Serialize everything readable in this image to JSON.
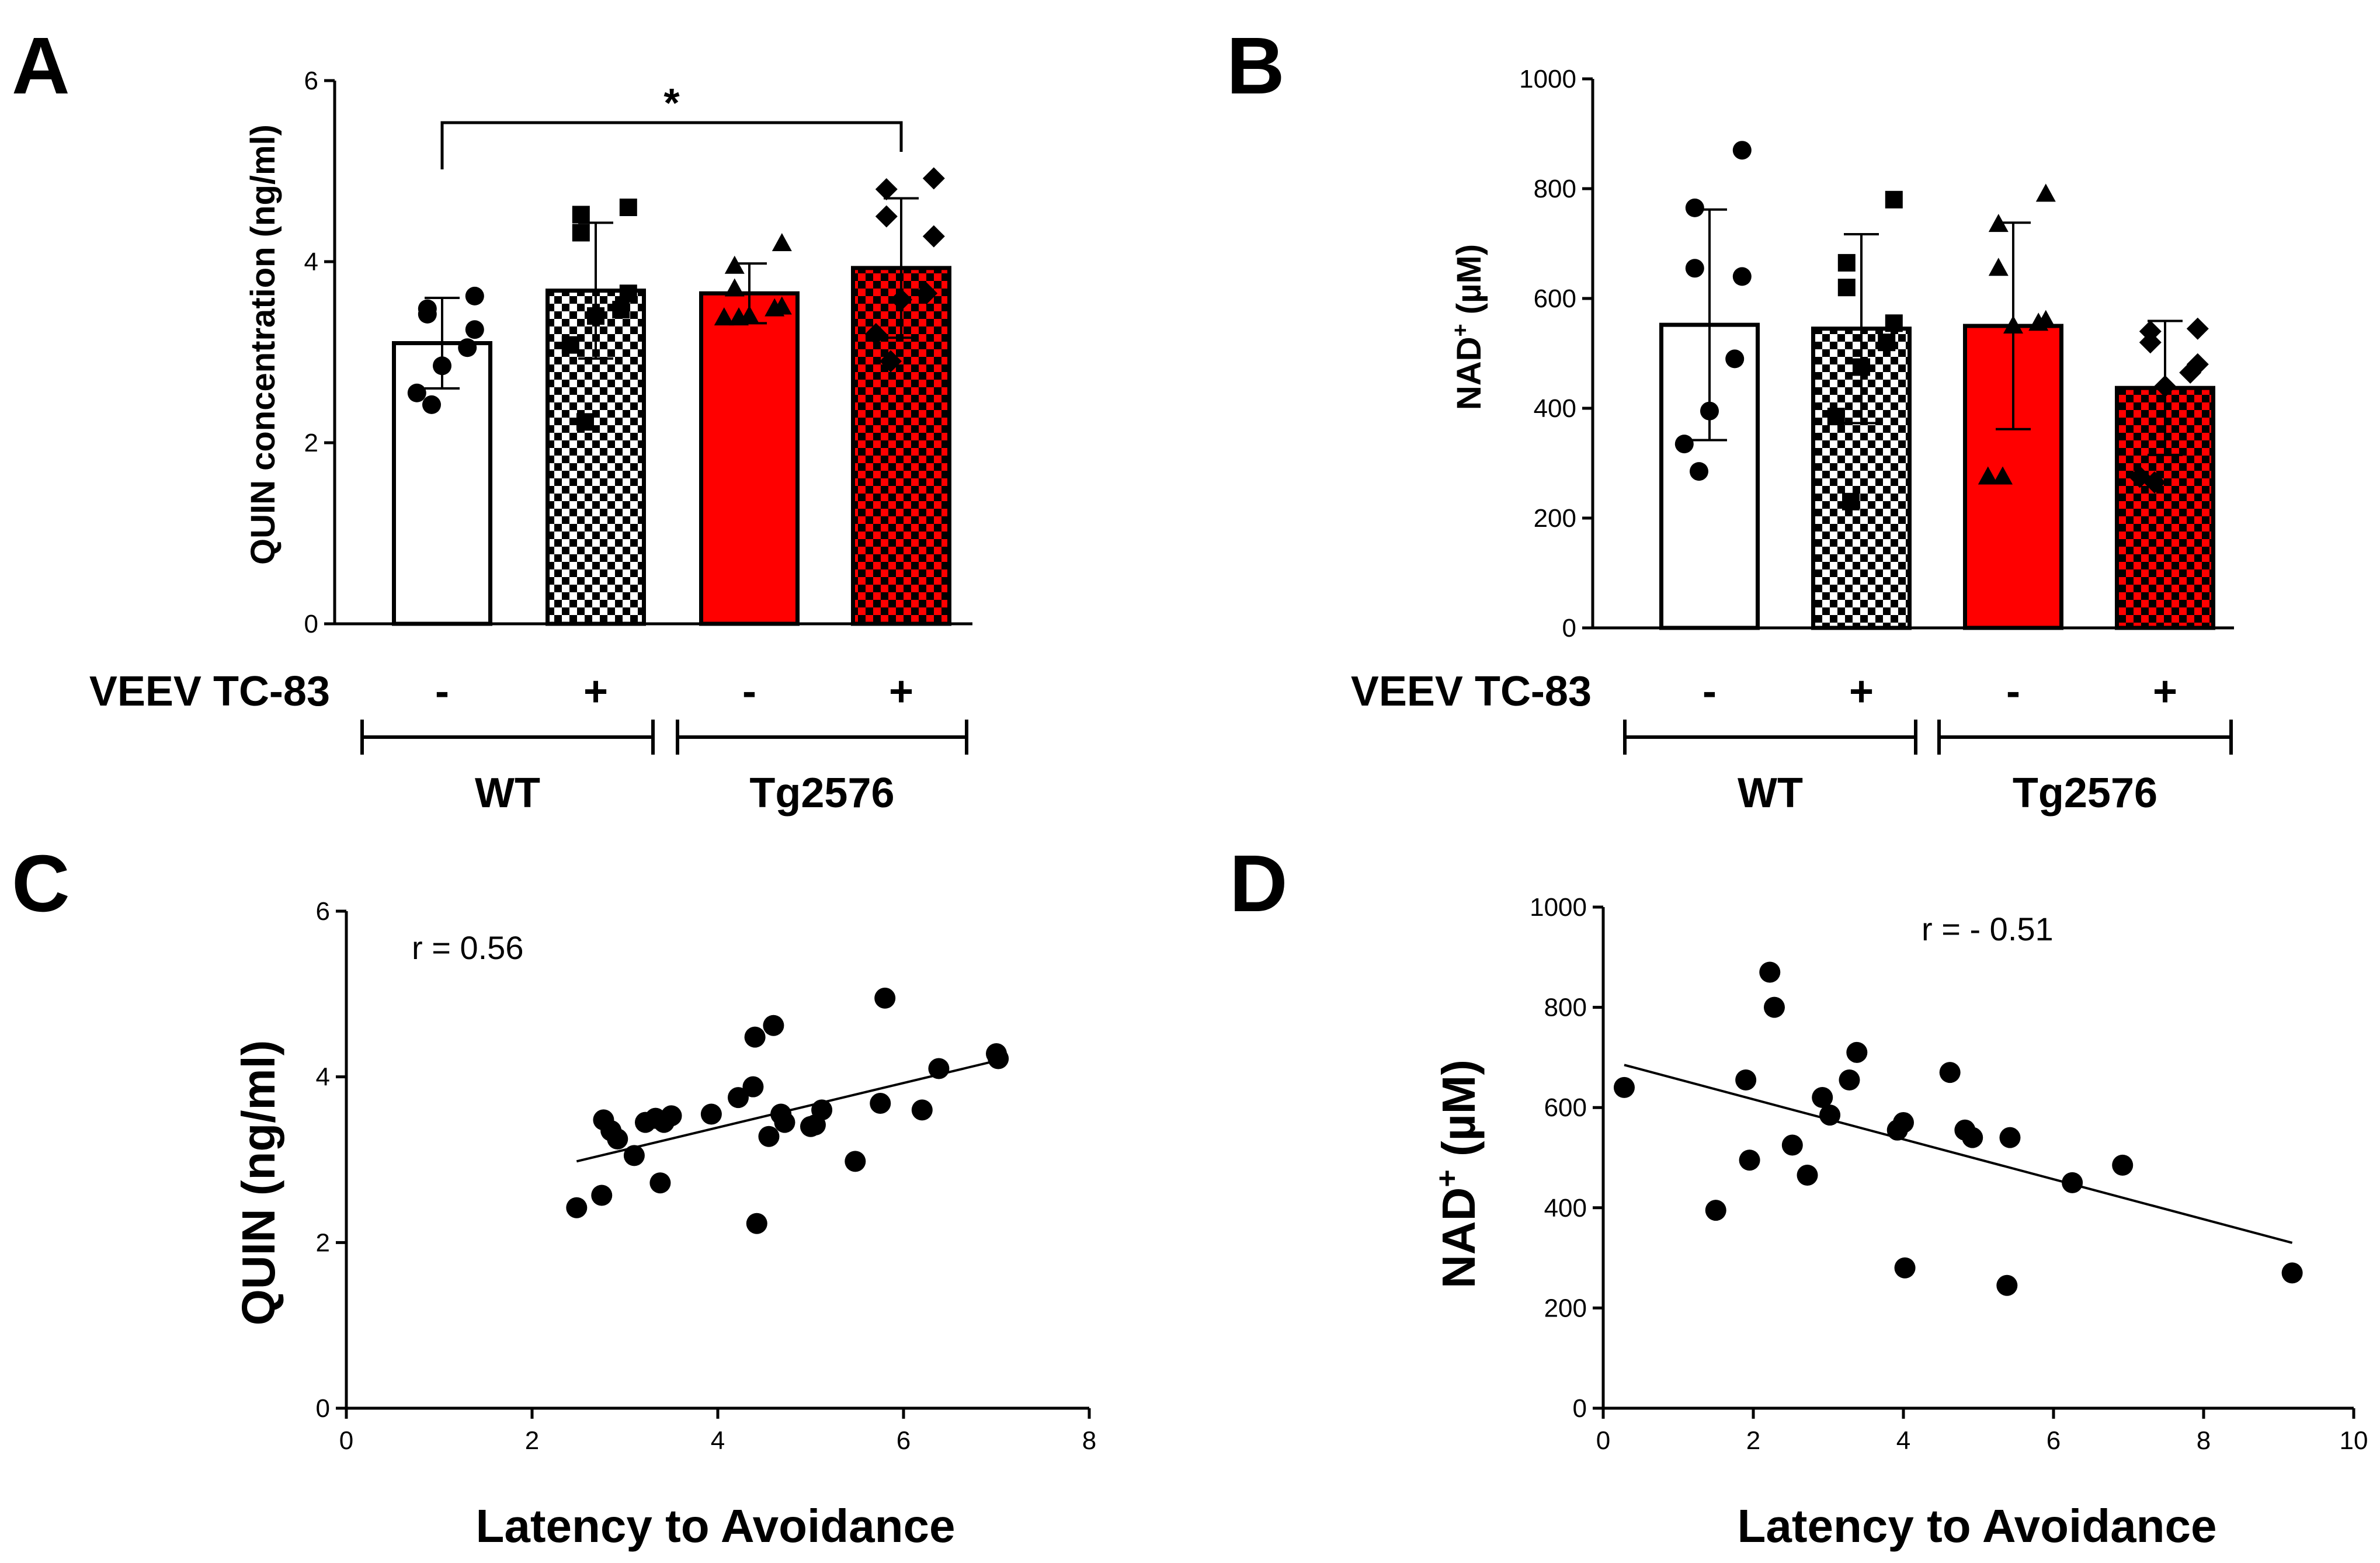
{
  "colors": {
    "wt": "#ffffff",
    "tg": "#ff0000",
    "stroke": "#000000",
    "checker_dark": "#000000",
    "checker_tg_light": "#ff0000"
  },
  "chart_data": [
    {
      "panel": "A",
      "type": "bar",
      "ylabel": "QUIN concentration (ng/ml)",
      "ylim": [
        0,
        6
      ],
      "yticks": [
        0,
        2,
        4,
        6
      ],
      "treatment_label": "VEEV TC-83",
      "groups": [
        {
          "label": "WT",
          "treatments": [
            "-",
            "+"
          ]
        },
        {
          "label": "Tg2576",
          "treatments": [
            "-",
            "+"
          ]
        }
      ],
      "categories": [
        "WT -",
        "WT +",
        "Tg2576 -",
        "Tg2576 +"
      ],
      "values": [
        3.1,
        3.68,
        3.65,
        3.93
      ],
      "sd": [
        0.5,
        0.75,
        0.33,
        0.77
      ],
      "points": [
        [
          3.62,
          3.48,
          3.42,
          3.25,
          3.05,
          2.85,
          2.55,
          2.42
        ],
        [
          4.6,
          4.52,
          4.32,
          3.65,
          3.47,
          3.4,
          3.08,
          2.23
        ],
        [
          4.2,
          3.95,
          3.7,
          3.5,
          3.48,
          3.4,
          3.38,
          3.38
        ],
        [
          4.92,
          4.8,
          4.5,
          4.28,
          3.65,
          3.58,
          3.2,
          2.9
        ]
      ],
      "markers": [
        "circle",
        "square",
        "triangle",
        "diamond"
      ],
      "fills": [
        "white",
        "checker-black",
        "red",
        "checker-red"
      ],
      "significance": {
        "from": 0,
        "to": 3,
        "label": "*"
      }
    },
    {
      "panel": "B",
      "type": "bar",
      "ylabel": "NAD+ (µM)",
      "ylim": [
        0,
        1000
      ],
      "yticks": [
        0,
        200,
        400,
        600,
        800,
        1000
      ],
      "treatment_label": "VEEV TC-83",
      "groups": [
        {
          "label": "WT",
          "treatments": [
            "-",
            "+"
          ]
        },
        {
          "label": "Tg2576",
          "treatments": [
            "-",
            "+"
          ]
        }
      ],
      "categories": [
        "WT -",
        "WT +",
        "Tg2576 -",
        "Tg2576 +"
      ],
      "values": [
        552,
        545,
        550,
        437
      ],
      "sd": [
        210,
        172,
        188,
        122
      ],
      "points": [
        [
          870,
          765,
          655,
          640,
          490,
          395,
          335,
          285
        ],
        [
          780,
          665,
          620,
          555,
          520,
          475,
          385,
          230
        ],
        [
          790,
          735,
          655,
          560,
          555,
          550,
          275,
          275
        ],
        [
          545,
          540,
          520,
          480,
          465,
          440,
          275,
          265
        ]
      ],
      "markers": [
        "circle",
        "square",
        "triangle",
        "diamond"
      ],
      "fills": [
        "white",
        "checker-black",
        "red",
        "checker-red"
      ]
    },
    {
      "panel": "C",
      "type": "scatter",
      "xlabel": "Latency to Avoidance",
      "ylabel": "QUIN (ng/ml)",
      "xlim": [
        0,
        8
      ],
      "ylim": [
        0,
        6
      ],
      "xticks": [
        0,
        2,
        4,
        6,
        8
      ],
      "yticks": [
        0,
        2,
        4,
        6
      ],
      "annotation": "r = 0.56",
      "x": [
        2.48,
        2.75,
        2.77,
        2.85,
        2.92,
        3.1,
        3.22,
        3.33,
        3.38,
        3.42,
        3.5,
        3.93,
        4.22,
        4.38,
        4.4,
        4.42,
        4.55,
        4.6,
        4.68,
        4.72,
        5.0,
        5.05,
        5.12,
        5.48,
        5.75,
        5.8,
        6.2,
        6.38,
        7.0,
        7.02
      ],
      "y": [
        2.42,
        2.57,
        3.48,
        3.35,
        3.25,
        3.05,
        3.45,
        3.5,
        2.72,
        3.45,
        3.53,
        3.55,
        3.75,
        3.88,
        4.48,
        2.23,
        3.28,
        4.62,
        3.55,
        3.45,
        3.4,
        3.42,
        3.6,
        2.98,
        3.68,
        4.95,
        3.6,
        4.1,
        4.28,
        4.22
      ],
      "fit": {
        "x": [
          2.48,
          7.02
        ],
        "y": [
          2.98,
          4.2
        ]
      }
    },
    {
      "panel": "D",
      "type": "scatter",
      "xlabel": "Latency to Avoidance",
      "ylabel": "NAD+ (µM)",
      "xlim": [
        0,
        10
      ],
      "ylim": [
        0,
        1000
      ],
      "xticks": [
        0,
        2,
        4,
        6,
        8,
        10
      ],
      "yticks": [
        0,
        200,
        400,
        600,
        800,
        1000
      ],
      "annotation": "r = - 0.51",
      "x": [
        0.28,
        1.5,
        1.9,
        1.95,
        2.22,
        2.28,
        2.52,
        2.72,
        2.92,
        3.02,
        3.28,
        3.38,
        3.92,
        4.0,
        4.02,
        4.62,
        4.82,
        4.92,
        5.38,
        5.42,
        6.25,
        6.92,
        9.18
      ],
      "y": [
        640,
        395,
        655,
        495,
        870,
        800,
        525,
        465,
        620,
        585,
        655,
        710,
        555,
        570,
        280,
        670,
        555,
        540,
        245,
        540,
        450,
        485,
        270
      ],
      "fit": {
        "x": [
          0.28,
          9.18
        ],
        "y": [
          685,
          330
        ]
      }
    }
  ],
  "panel_B_ylabel_parts": {
    "main": "NAD",
    "sup": "+",
    "unit": " (µM)"
  },
  "panel_D_ylabel_parts": {
    "main": "NAD",
    "sup": "+",
    "unit": " (µM)"
  }
}
